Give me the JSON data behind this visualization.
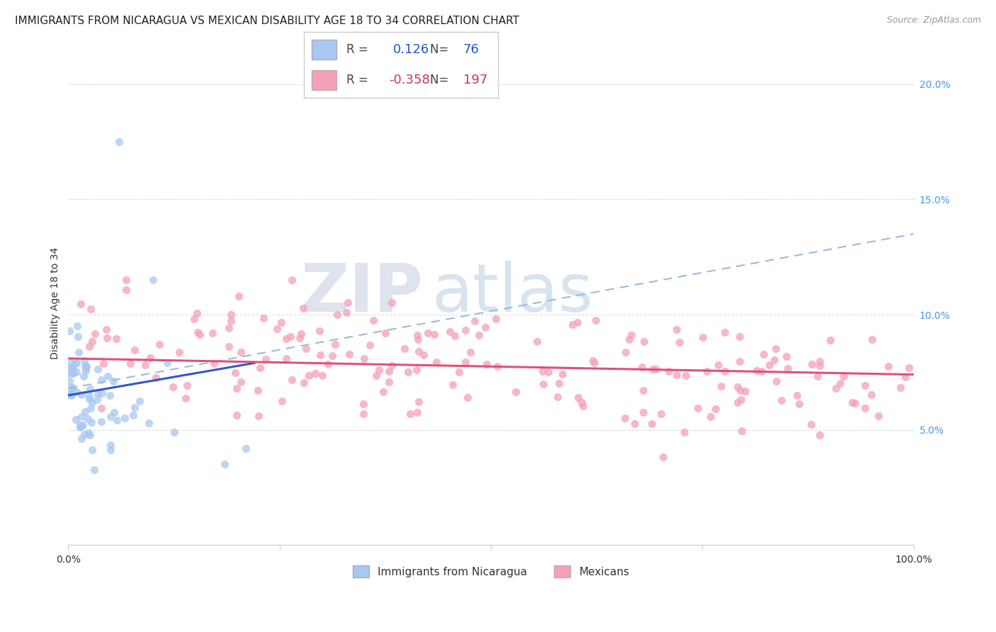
{
  "title": "IMMIGRANTS FROM NICARAGUA VS MEXICAN DISABILITY AGE 18 TO 34 CORRELATION CHART",
  "source": "Source: ZipAtlas.com",
  "ylabel": "Disability Age 18 to 34",
  "xlim": [
    0.0,
    1.0
  ],
  "ylim": [
    0.0,
    0.21
  ],
  "yticks": [
    0.0,
    0.05,
    0.1,
    0.15,
    0.2
  ],
  "r_nicaragua": 0.126,
  "n_nicaragua": 76,
  "r_mexican": -0.358,
  "n_mexican": 197,
  "color_nicaragua": "#a8c8f0",
  "color_mexican": "#f4a0b8",
  "trendline_nicaragua_solid": "#3355cc",
  "trendline_mexican_solid": "#e0507a",
  "trendline_dashed_color": "#99bbdd",
  "watermark_zip": "ZIP",
  "watermark_atlas": "atlas",
  "background_color": "#ffffff",
  "grid_color": "#dddddd",
  "title_fontsize": 11,
  "axis_label_fontsize": 10,
  "tick_fontsize": 10,
  "source_fontsize": 9,
  "legend_color_nic": "#2255cc",
  "legend_color_mex": "#cc3366",
  "nic_trend_x_start": 0.0,
  "nic_trend_y_start": 0.065,
  "nic_trend_x_end": 0.22,
  "nic_trend_y_end": 0.079,
  "mex_trend_x_start": 0.0,
  "mex_trend_y_start": 0.081,
  "mex_trend_x_end": 1.0,
  "mex_trend_y_end": 0.074,
  "dash_trend_x_start": 0.0,
  "dash_trend_y_start": 0.068,
  "dash_trend_x_end": 1.0,
  "dash_trend_y_end": 0.135
}
